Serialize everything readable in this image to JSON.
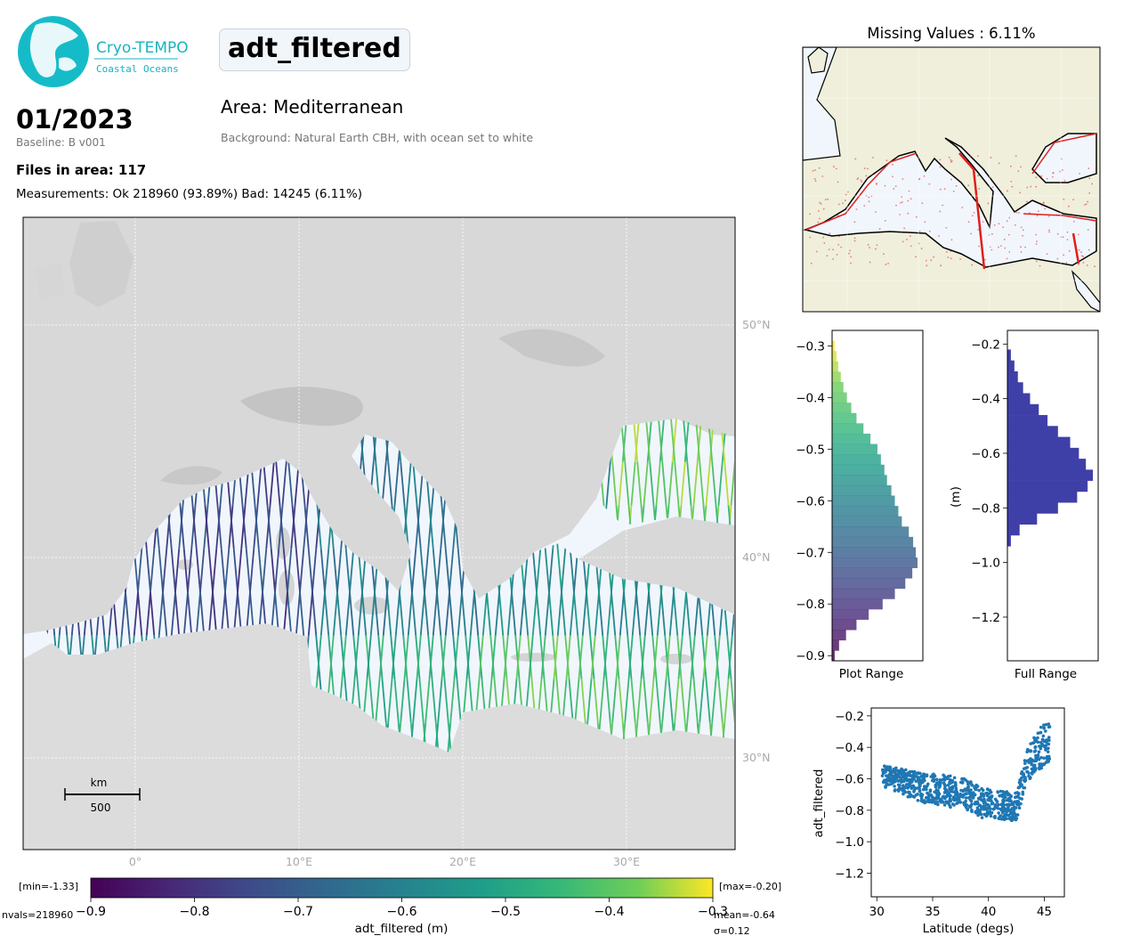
{
  "header": {
    "logo_title": "Cryo-TEMPO",
    "logo_subtitle": "Coastal Oceans",
    "variable": "adt_filtered",
    "date": "01/2023",
    "baseline": "Baseline: B v001",
    "area": "Area: Mediterranean",
    "background_note": "Background: Natural Earth CBH, with ocean set to white",
    "files_in_area": "Files in area: 117",
    "measurements": "Measurements: Ok 218960 (93.89%) Bad: 14245 (6.11%)",
    "missing_values": "Missing Values : 6.11%"
  },
  "colors": {
    "land_shade": "#d9d9d9",
    "ocean": "#f1f6fd",
    "inset_land": "#efefdc",
    "missing_marker": "#e0201c",
    "histogram_full": "#3f3fa8",
    "scatter_point": "#1f77b4"
  },
  "chart_data": [
    {
      "type": "map",
      "name": "main-map",
      "lon_ticks": [
        "0°",
        "10°E",
        "20°E",
        "30°E"
      ],
      "lat_ticks": [
        "50°N",
        "40°N",
        "30°N"
      ],
      "scale_bar": {
        "unit": "km",
        "value": "500"
      },
      "tracks": {
        "colormap": "viridis",
        "vmin": -0.9,
        "vmax": -0.3
      }
    },
    {
      "type": "colorbar",
      "name": "adt-colorbar",
      "colormap": "viridis",
      "range": [
        -0.9,
        -0.3
      ],
      "tick_labels": [
        "−0.9",
        "−0.8",
        "−0.7",
        "−0.6",
        "−0.5",
        "−0.4",
        "−0.3"
      ],
      "label": "adt_filtered (m)",
      "min_label": "[min=-1.33]",
      "max_label": "[max=-0.20]",
      "nvals": "nvals=218960",
      "mean": "mean=-0.64",
      "sigma": "σ=0.12"
    },
    {
      "type": "bar",
      "name": "plot-range-histogram",
      "orientation": "horizontal",
      "xlabel": "Plot Range",
      "ylim": [
        -0.91,
        -0.27
      ],
      "ytick_labels": [
        "−0.3",
        "−0.4",
        "−0.5",
        "−0.6",
        "−0.7",
        "−0.8",
        "−0.9"
      ],
      "ytick_values": [
        -0.3,
        -0.4,
        -0.5,
        -0.6,
        -0.7,
        -0.8,
        -0.9
      ],
      "bins_y": [
        -0.3,
        -0.32,
        -0.34,
        -0.36,
        -0.38,
        -0.4,
        -0.42,
        -0.44,
        -0.46,
        -0.48,
        -0.5,
        -0.52,
        -0.54,
        -0.56,
        -0.58,
        -0.6,
        -0.62,
        -0.64,
        -0.66,
        -0.68,
        -0.7,
        -0.72,
        -0.74,
        -0.76,
        -0.78,
        -0.8,
        -0.82,
        -0.84,
        -0.86,
        -0.88,
        -0.9
      ],
      "counts": [
        3,
        5,
        7,
        10,
        13,
        17,
        22,
        28,
        36,
        44,
        52,
        56,
        60,
        63,
        68,
        72,
        76,
        80,
        88,
        93,
        96,
        98,
        92,
        84,
        72,
        58,
        42,
        28,
        16,
        8,
        3
      ]
    },
    {
      "type": "bar",
      "name": "full-range-histogram",
      "orientation": "horizontal",
      "xlabel": "Full Range",
      "ylabel": "(m)",
      "ylim": [
        -1.36,
        -0.15
      ],
      "ytick_labels": [
        "−0.2",
        "−0.4",
        "−0.6",
        "−0.8",
        "−1.0",
        "−1.2"
      ],
      "ytick_values": [
        -0.2,
        -0.4,
        -0.6,
        -0.8,
        -1.0,
        -1.2
      ],
      "bins_y": [
        -0.24,
        -0.28,
        -0.32,
        -0.36,
        -0.4,
        -0.44,
        -0.48,
        -0.52,
        -0.56,
        -0.6,
        -0.64,
        -0.68,
        -0.72,
        -0.76,
        -0.8,
        -0.84,
        -0.88,
        -0.92
      ],
      "counts": [
        4,
        8,
        12,
        18,
        26,
        36,
        46,
        58,
        72,
        82,
        90,
        98,
        92,
        80,
        58,
        34,
        14,
        4
      ]
    },
    {
      "type": "scatter",
      "name": "latitude-scatter",
      "xlabel": "Latitude (degs)",
      "ylabel": "adt_filtered",
      "xlim": [
        29.5,
        46.8
      ],
      "ylim": [
        -1.35,
        -0.15
      ],
      "xtick_labels": [
        "30",
        "35",
        "40",
        "45"
      ],
      "xtick_values": [
        30,
        35,
        40,
        45
      ],
      "ytick_labels": [
        "−0.2",
        "−0.4",
        "−0.6",
        "−0.8",
        "−1.0",
        "−1.2"
      ],
      "ytick_values": [
        -0.2,
        -0.4,
        -0.6,
        -0.8,
        -1.0,
        -1.2
      ],
      "band_lat": [
        30.5,
        31.5,
        32.5,
        33.5,
        34.5,
        35.5,
        36.5,
        37.5,
        38.5,
        39.5,
        40.5,
        41.5,
        42.5,
        43.5,
        44.5,
        45.5
      ],
      "band_center": [
        -0.58,
        -0.6,
        -0.62,
        -0.64,
        -0.66,
        -0.67,
        -0.68,
        -0.69,
        -0.72,
        -0.75,
        -0.76,
        -0.77,
        -0.78,
        -0.5,
        -0.42,
        -0.34
      ],
      "band_halfwidth": [
        0.07,
        0.08,
        0.09,
        0.1,
        0.1,
        0.1,
        0.1,
        0.1,
        0.1,
        0.09,
        0.09,
        0.09,
        0.09,
        0.12,
        0.14,
        0.12
      ]
    }
  ]
}
